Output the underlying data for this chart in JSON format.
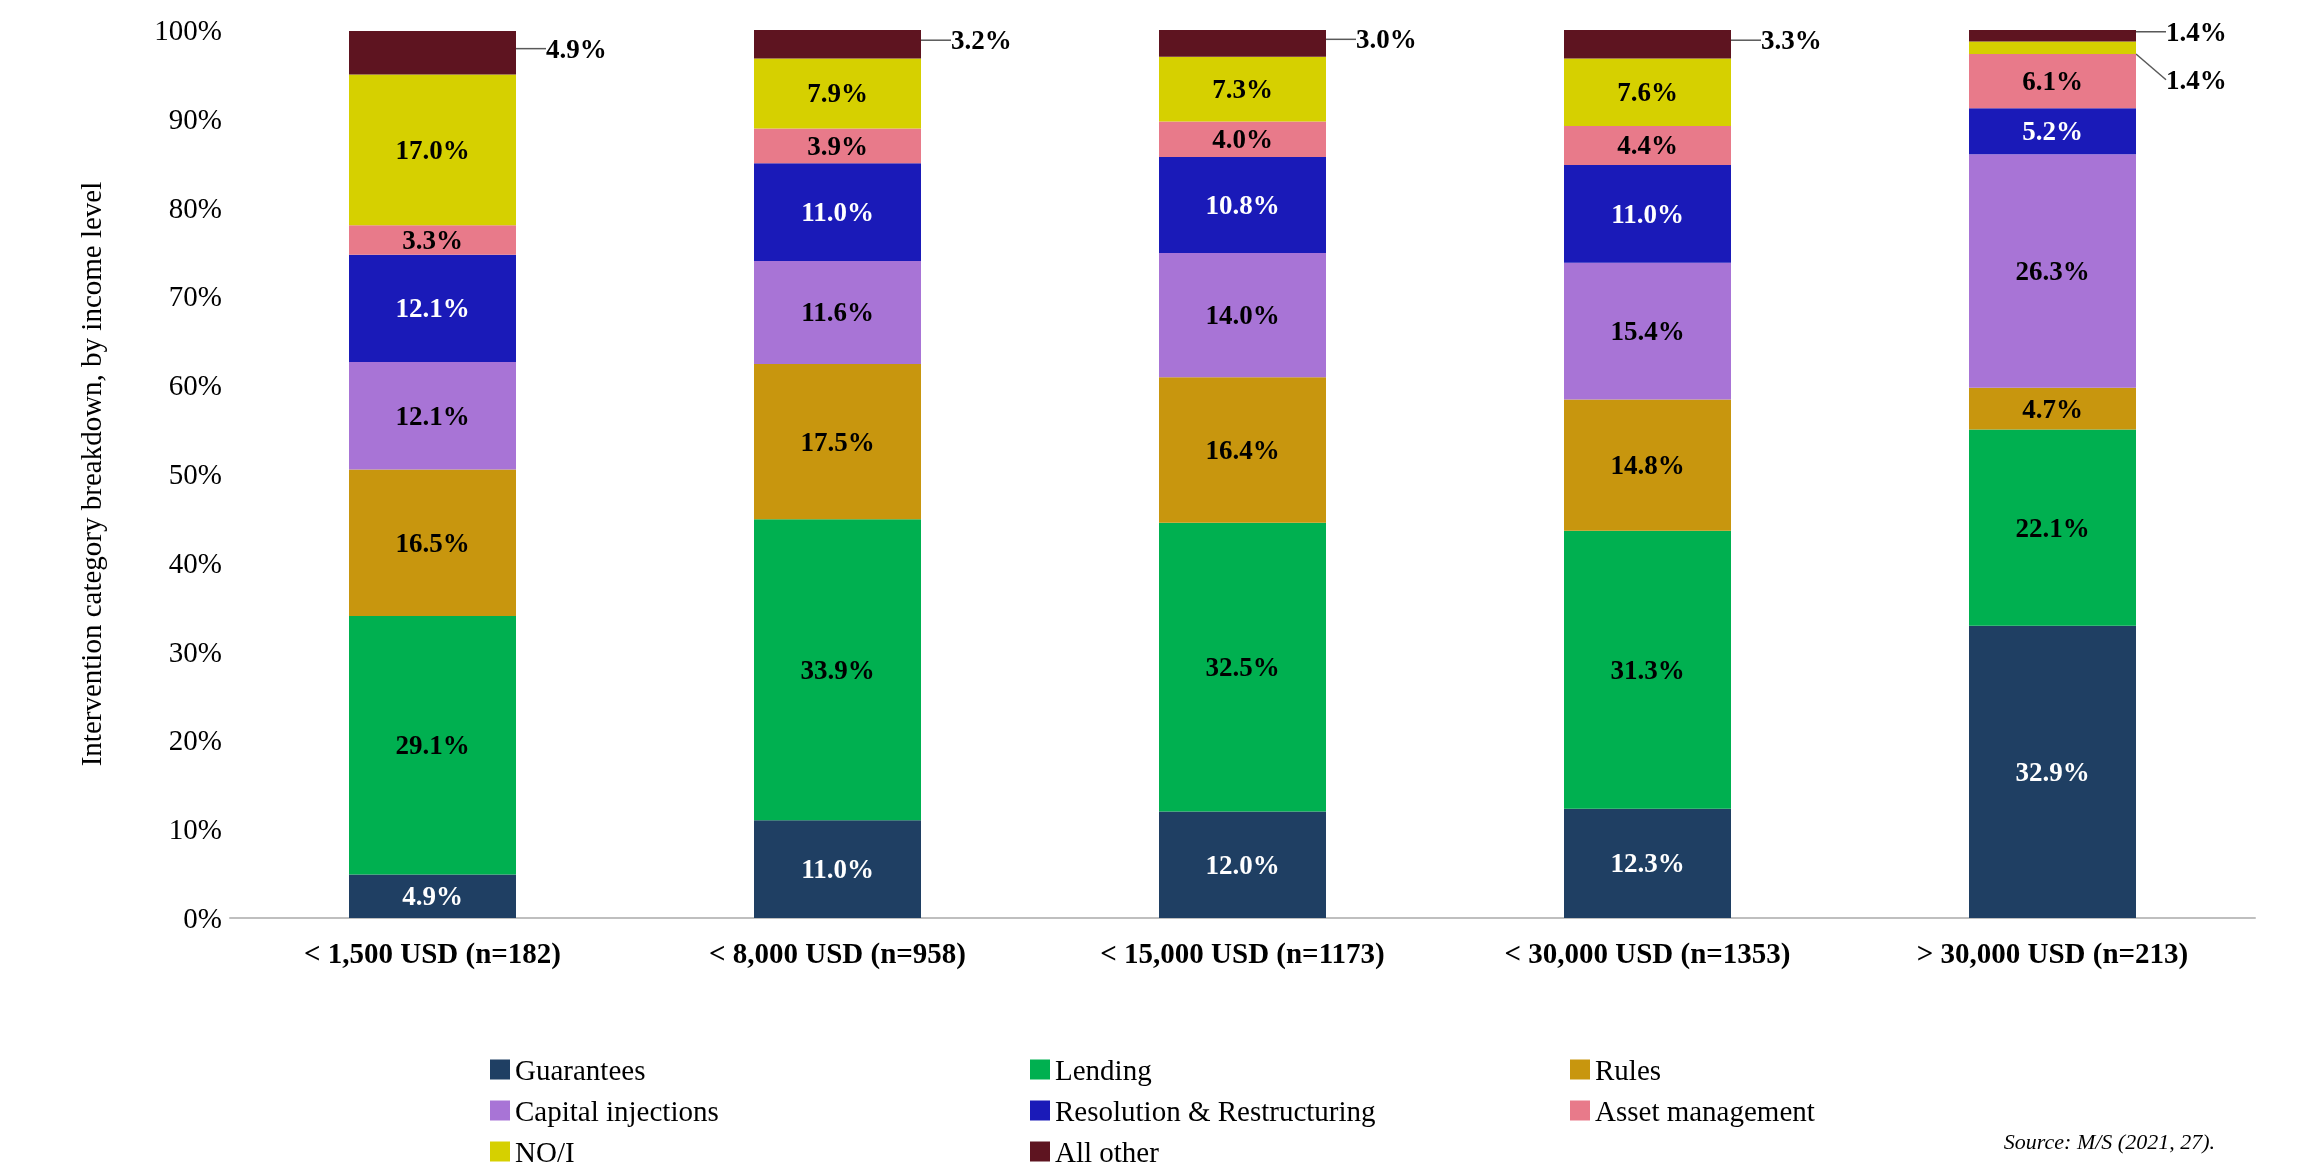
{
  "chart_data": {
    "type": "bar",
    "stacked": true,
    "ylabel": "Intervention category breakdown, by income level",
    "categories": [
      "< 1,500 USD (n=182)",
      "< 8,000 USD (n=958)",
      "< 15,000 USD (n=1173)",
      "< 30,000 USD (n=1353)",
      "> 30,000 USD (n=213)"
    ],
    "ylim": [
      0,
      100
    ],
    "yticks": [
      {
        "value": 0,
        "label": "0%"
      },
      {
        "value": 10,
        "label": "10%"
      },
      {
        "value": 20,
        "label": "20%"
      },
      {
        "value": 30,
        "label": "30%"
      },
      {
        "value": 40,
        "label": "40%"
      },
      {
        "value": 50,
        "label": "50%"
      },
      {
        "value": 60,
        "label": "60%"
      },
      {
        "value": 70,
        "label": "70%"
      },
      {
        "value": 80,
        "label": "80%"
      },
      {
        "value": 90,
        "label": "90%"
      },
      {
        "value": 100,
        "label": "100%"
      }
    ],
    "grid": false,
    "legend": "bottom",
    "series": [
      {
        "name": "Guarantees",
        "color": "#1f3f63",
        "values": [
          4.9,
          11.0,
          12.0,
          12.3,
          32.9
        ],
        "value_labels": [
          "4.9%",
          "11.0%",
          "12.0%",
          "12.3%",
          "32.9%"
        ]
      },
      {
        "name": "Lending",
        "color": "#00b050",
        "values": [
          29.1,
          33.9,
          32.5,
          31.3,
          22.1
        ],
        "value_labels": [
          "29.1%",
          "33.9%",
          "32.5%",
          "31.3%",
          "22.1%"
        ]
      },
      {
        "name": "Rules",
        "color": "#c8960e",
        "values": [
          16.5,
          17.5,
          16.4,
          14.8,
          4.7
        ],
        "value_labels": [
          "16.5%",
          "17.5%",
          "16.4%",
          "14.8%",
          "4.7%"
        ]
      },
      {
        "name": "Capital injections",
        "color": "#a874d6",
        "values": [
          12.1,
          11.6,
          14.0,
          15.4,
          26.3
        ],
        "value_labels": [
          "12.1%",
          "11.6%",
          "14.0%",
          "15.4%",
          "26.3%"
        ]
      },
      {
        "name": "Resolution & Restructuring",
        "color": "#1a1ab8",
        "values": [
          12.1,
          11.0,
          10.8,
          11.0,
          5.2
        ],
        "value_labels": [
          "12.1%",
          "11.0%",
          "10.8%",
          "11.0%",
          "5.2%"
        ]
      },
      {
        "name": "Asset management",
        "color": "#e87a8a",
        "values": [
          3.3,
          3.9,
          4.0,
          4.4,
          6.1
        ],
        "value_labels": [
          "3.3%",
          "3.9%",
          "4.0%",
          "4.4%",
          "6.1%"
        ]
      },
      {
        "name": "NO/I",
        "color": "#d6d000",
        "values": [
          17.0,
          7.9,
          7.3,
          7.6,
          1.4
        ],
        "value_labels": [
          "17.0%",
          "7.9%",
          "7.3%",
          "7.6%",
          "1.4%"
        ]
      },
      {
        "name": "All other",
        "color": "#5e1420",
        "values": [
          4.9,
          3.2,
          3.0,
          3.3,
          1.4
        ],
        "value_labels": [
          "4.9%",
          "3.2%",
          "3.0%",
          "3.3%",
          "1.4%"
        ]
      }
    ],
    "annotations": [
      "Source: M/S (2021, 27)."
    ]
  }
}
